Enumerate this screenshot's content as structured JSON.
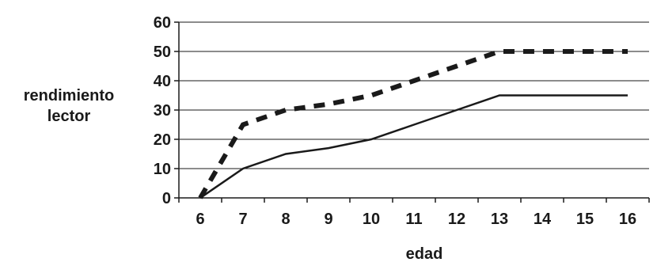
{
  "chart_data": {
    "type": "line",
    "title": "",
    "xlabel": "edad",
    "ylabel_lines": [
      "rendimiento",
      "lector"
    ],
    "x": [
      6,
      7,
      8,
      9,
      10,
      11,
      12,
      13,
      14,
      15,
      16
    ],
    "xlim": [
      5.5,
      16.5
    ],
    "ylim": [
      0,
      60
    ],
    "yticks": [
      0,
      10,
      20,
      30,
      40,
      50,
      60
    ],
    "grid": true,
    "legend": "none",
    "series": [
      {
        "style": "dashed-thick",
        "color": "#1a1a1a",
        "x": [
          6,
          7,
          8,
          9,
          10,
          11,
          12,
          13,
          14,
          15,
          16
        ],
        "values": [
          0,
          25,
          30,
          32,
          35,
          40,
          45,
          50,
          50,
          50,
          50
        ]
      },
      {
        "style": "solid",
        "color": "#1a1a1a",
        "x": [
          6,
          7,
          8,
          9,
          10,
          11,
          12,
          13,
          14,
          15,
          16
        ],
        "values": [
          0,
          10,
          15,
          17,
          20,
          25,
          30,
          35,
          35,
          35,
          35
        ]
      }
    ]
  }
}
